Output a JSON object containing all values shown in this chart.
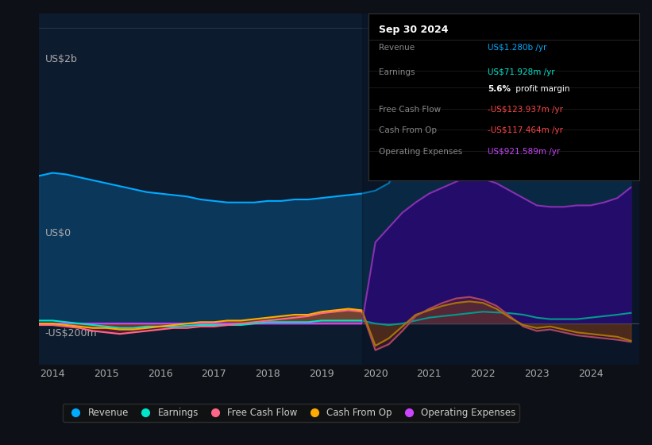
{
  "background_color": "#0d1117",
  "plot_bg_color": "#0d1b2e",
  "ylabel_top": "US$2b",
  "ylabel_zero": "US$0",
  "ylabel_neg": "-US$200m",
  "tooltip_title": "Sep 30 2024",
  "tooltip_rows": [
    {
      "label": "Revenue",
      "value": "US$1.280b /yr",
      "value_color": "#00aaff"
    },
    {
      "label": "Earnings",
      "value": "US$71.928m /yr",
      "value_color": "#00e5cc"
    },
    {
      "label": "",
      "value_bold": "5.6%",
      "value_rest": " profit margin",
      "value_color": "#ffffff"
    },
    {
      "label": "Free Cash Flow",
      "value": "-US$123.937m /yr",
      "value_color": "#ff4444"
    },
    {
      "label": "Cash From Op",
      "value": "-US$117.464m /yr",
      "value_color": "#ff4444"
    },
    {
      "label": "Operating Expenses",
      "value": "US$921.589m /yr",
      "value_color": "#cc44ff"
    }
  ],
  "legend_items": [
    {
      "label": "Revenue",
      "color": "#00aaff"
    },
    {
      "label": "Earnings",
      "color": "#00e5cc"
    },
    {
      "label": "Free Cash Flow",
      "color": "#ff6688"
    },
    {
      "label": "Cash From Op",
      "color": "#ffaa00"
    },
    {
      "label": "Operating Expenses",
      "color": "#cc44ff"
    }
  ]
}
